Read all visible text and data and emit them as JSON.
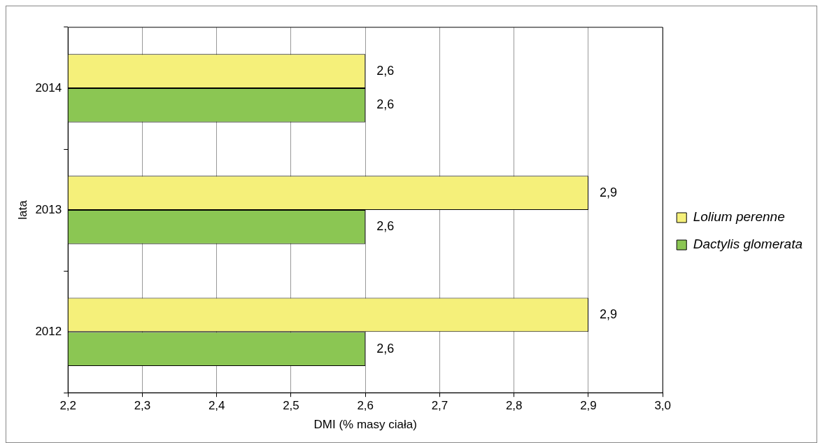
{
  "chart_data": {
    "type": "bar",
    "orientation": "horizontal",
    "xlabel": "DMI (% masy ciała)",
    "ylabel": "lata",
    "categories": [
      "2014",
      "2013",
      "2012"
    ],
    "series": [
      {
        "name": "Lolium perenne",
        "color": "#f5f07a",
        "values": [
          2.6,
          2.9,
          2.9
        ],
        "value_labels": [
          "2,6",
          "2,9",
          "2,9"
        ]
      },
      {
        "name": "Dactylis glomerata",
        "color": "#8bc653",
        "values": [
          2.6,
          2.6,
          2.6
        ],
        "value_labels": [
          "2,6",
          "2,6",
          "2,6"
        ]
      }
    ],
    "xlim": [
      2.2,
      3.0
    ],
    "xticks": [
      {
        "value": 2.2,
        "label": "2,2"
      },
      {
        "value": 2.3,
        "label": "2,3"
      },
      {
        "value": 2.4,
        "label": "2,4"
      },
      {
        "value": 2.5,
        "label": "2,5"
      },
      {
        "value": 2.6,
        "label": "2,6"
      },
      {
        "value": 2.7,
        "label": "2,7"
      },
      {
        "value": 2.8,
        "label": "2,8"
      },
      {
        "value": 2.9,
        "label": "2,9"
      },
      {
        "value": 3.0,
        "label": "3,0"
      }
    ],
    "grid": "x",
    "legend": "right"
  }
}
